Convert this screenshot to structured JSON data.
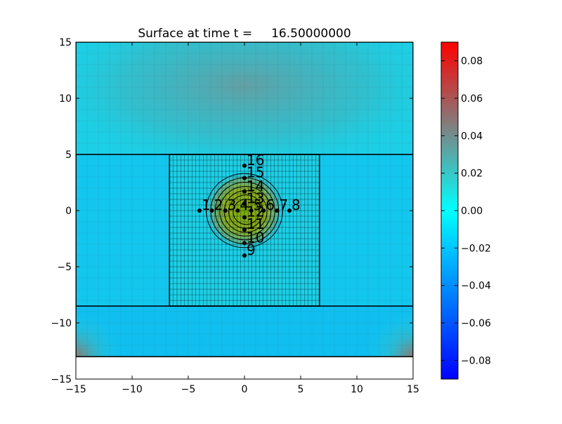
{
  "chart_data": {
    "type": "heatmap",
    "title": "Surface at time t =     16.50000000",
    "xlim": [
      -15,
      15
    ],
    "ylim": [
      -15,
      15
    ],
    "x_ticks": [
      -15,
      -10,
      -5,
      0,
      5,
      10,
      15
    ],
    "y_ticks": [
      -15,
      -10,
      -5,
      0,
      5,
      10,
      15
    ],
    "x_tick_labels": [
      "−15",
      "−10",
      "−5",
      "0",
      "5",
      "10",
      "15"
    ],
    "y_tick_labels": [
      "−15",
      "−10",
      "−5",
      "0",
      "5",
      "10",
      "15"
    ],
    "colorbar": {
      "range": [
        -0.09,
        0.09
      ],
      "ticks": [
        0.08,
        0.06,
        0.04,
        0.02,
        0.0,
        -0.02,
        -0.04,
        -0.06,
        -0.08
      ],
      "tick_labels": [
        "0.08",
        "0.06",
        "0.04",
        "0.02",
        "0.00",
        "−0.02",
        "−0.04",
        "−0.06",
        "−0.08"
      ],
      "colors": [
        "#0000ff",
        "#0080ff",
        "#00ffff",
        "#808080",
        "#ff0000"
      ]
    },
    "domain": {
      "x": [
        -15,
        15
      ],
      "y": [
        -13,
        15
      ]
    },
    "fine_grid_region": {
      "x": [
        -6.67,
        6.67
      ],
      "y": [
        -8.5,
        5
      ]
    },
    "outer_band_y": 5,
    "lower_band_y": -8.5,
    "gauges": [
      {
        "label": "1",
        "x": -4,
        "y": 0
      },
      {
        "label": "2",
        "x": -2.9,
        "y": 0
      },
      {
        "label": "3",
        "x": -1.7,
        "y": 0
      },
      {
        "label": "4",
        "x": -0.6,
        "y": 0
      },
      {
        "label": "5",
        "x": 0.6,
        "y": 0
      },
      {
        "label": "6",
        "x": 1.7,
        "y": 0
      },
      {
        "label": "7",
        "x": 2.9,
        "y": 0
      },
      {
        "label": "8",
        "x": 4,
        "y": 0
      },
      {
        "label": "9",
        "x": 0,
        "y": -4
      },
      {
        "label": "10",
        "x": 0,
        "y": -2.9
      },
      {
        "label": "11",
        "x": 0,
        "y": -1.7
      },
      {
        "label": "12",
        "x": 0,
        "y": -0.6
      },
      {
        "label": "13",
        "x": 0,
        "y": 0.6
      },
      {
        "label": "14",
        "x": 0,
        "y": 1.7
      },
      {
        "label": "15",
        "x": 0,
        "y": 2.9
      },
      {
        "label": "16",
        "x": 0,
        "y": 4
      }
    ],
    "contour_center": [
      0,
      0
    ],
    "contour_radius_max": 3.4
  }
}
